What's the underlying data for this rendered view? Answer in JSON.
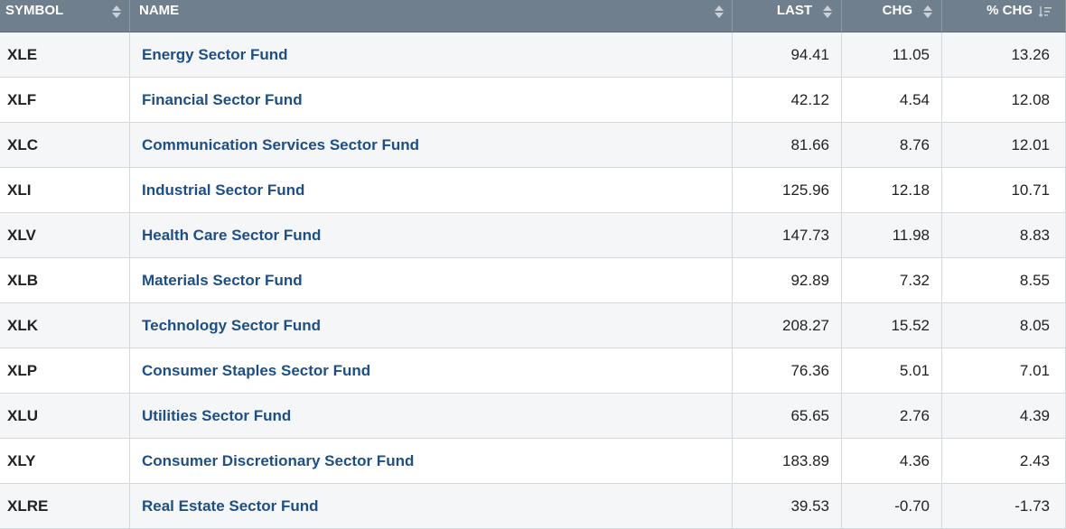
{
  "table": {
    "headers": {
      "symbol": "SYMBOL",
      "name": "NAME",
      "last": "LAST",
      "chg": "CHG",
      "pct_chg": "% CHG"
    },
    "sorted_by": "% CHG",
    "sort_direction": "descending",
    "rows": [
      {
        "symbol": "XLE",
        "name": "Energy Sector Fund",
        "last": "94.41",
        "chg": "11.05",
        "pct_chg": "13.26"
      },
      {
        "symbol": "XLF",
        "name": "Financial Sector Fund",
        "last": "42.12",
        "chg": "4.54",
        "pct_chg": "12.08"
      },
      {
        "symbol": "XLC",
        "name": "Communication Services Sector Fund",
        "last": "81.66",
        "chg": "8.76",
        "pct_chg": "12.01"
      },
      {
        "symbol": "XLI",
        "name": "Industrial Sector Fund",
        "last": "125.96",
        "chg": "12.18",
        "pct_chg": "10.71"
      },
      {
        "symbol": "XLV",
        "name": "Health Care Sector Fund",
        "last": "147.73",
        "chg": "11.98",
        "pct_chg": "8.83"
      },
      {
        "symbol": "XLB",
        "name": "Materials Sector Fund",
        "last": "92.89",
        "chg": "7.32",
        "pct_chg": "8.55"
      },
      {
        "symbol": "XLK",
        "name": "Technology Sector Fund",
        "last": "208.27",
        "chg": "15.52",
        "pct_chg": "8.05"
      },
      {
        "symbol": "XLP",
        "name": "Consumer Staples Sector Fund",
        "last": "76.36",
        "chg": "5.01",
        "pct_chg": "7.01"
      },
      {
        "symbol": "XLU",
        "name": "Utilities Sector Fund",
        "last": "65.65",
        "chg": "2.76",
        "pct_chg": "4.39"
      },
      {
        "symbol": "XLY",
        "name": "Consumer Discretionary Sector Fund",
        "last": "183.89",
        "chg": "4.36",
        "pct_chg": "2.43"
      },
      {
        "symbol": "XLRE",
        "name": "Real Estate Sector Fund",
        "last": "39.53",
        "chg": "-0.70",
        "pct_chg": "-1.73"
      }
    ]
  },
  "colors": {
    "header_bg": "#6f7f8d",
    "link": "#1d4f86",
    "alt_row": "#f4f6f8"
  },
  "icons": {
    "unsorted": "sort-arrows-icon",
    "sorted_desc": "sort-descending-icon"
  }
}
